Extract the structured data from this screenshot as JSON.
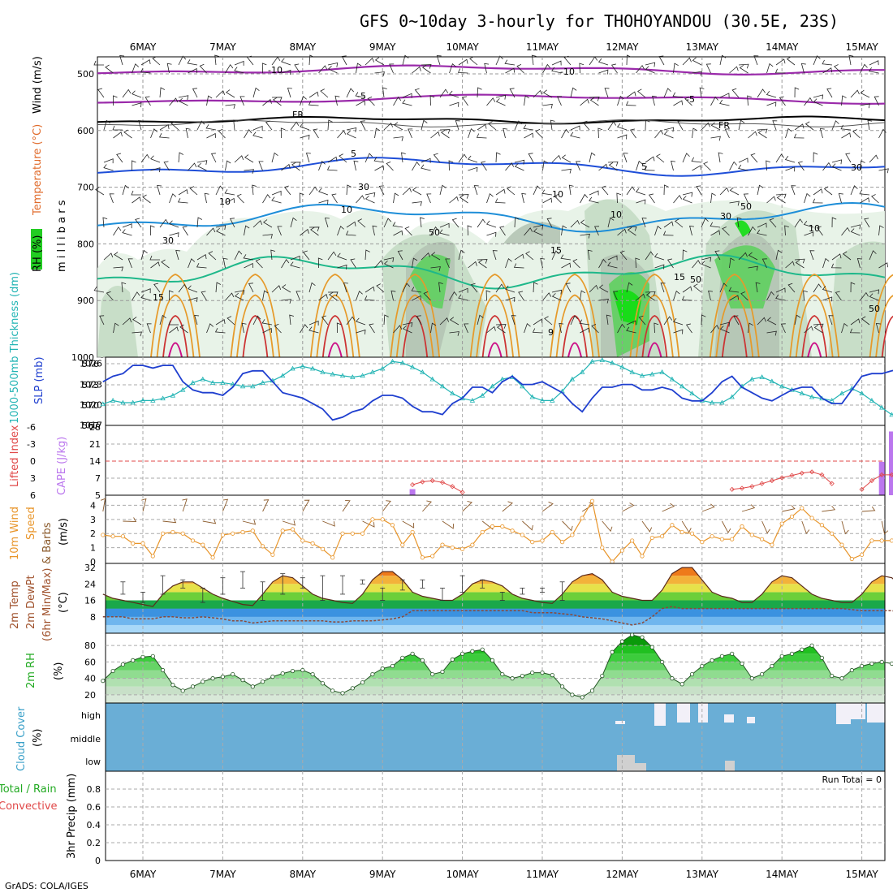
{
  "title": "GFS 0~10day 3-hourly for THOHOYANDOU (30.5E, 23S)",
  "credit": "GrADS: COLA/IGES",
  "dates": [
    "6MAY",
    "7MAY",
    "8MAY",
    "9MAY",
    "10MAY",
    "11MAY",
    "12MAY",
    "13MAY",
    "14MAY",
    "15MAY"
  ],
  "colors": {
    "rh_light": "#e6f2e6",
    "rh_mid": "#c4dcc4",
    "rh_grey": "#b4c4b4",
    "rh_green": "#5fcf5f",
    "rh_bright": "#11dd11",
    "t_purple": "#9a2aaa",
    "t_fr": "#000000",
    "t_blue": "#1e4ed8",
    "t_lightblue": "#1e8ed8",
    "t_teal": "#1eb88a",
    "t_orange": "#e69a2a",
    "t_red": "#cc3333",
    "t_magenta": "#cc1188",
    "slp": "#1f3fcf",
    "thick": "#22b4b4",
    "li": "#e04848",
    "cape": "#bb77ee",
    "wspd": "#e8952a",
    "barb": "#8b5a2b",
    "cloud": "#6aaed6",
    "cloud_gap": "#f2f0f8",
    "precip_total": "#22aa22"
  },
  "panels": {
    "profile": {
      "y_label": "m i l l i b a r s",
      "legend": [
        "RH (%)",
        "Temperature (°C)",
        "Wind (m/s)"
      ],
      "yticks": [
        500,
        600,
        700,
        800,
        900,
        1000
      ],
      "contour_labels": [
        "-10",
        "-10",
        "-5",
        "-5",
        "FR",
        "FR",
        "5",
        "5",
        "10",
        "10",
        "10",
        "15",
        "15",
        "15",
        "9",
        "30",
        "30",
        "30",
        "30",
        "50",
        "50",
        "50",
        "50",
        "10",
        "10"
      ]
    },
    "slp": {
      "label_thick": "1000-500mb Thickness (dm)",
      "label_slp": "SLP (mb)",
      "left_ticks": [
        "576",
        "573",
        "570",
        "567"
      ],
      "right_ticks": [
        "1026",
        "1023",
        "1020",
        "1017"
      ]
    },
    "cape": {
      "label_li": "Lifted Index",
      "label_cape": "CAPE (J/kg)",
      "left_ticks": [
        "-6",
        "-3",
        "0",
        "3",
        "6"
      ],
      "right_ticks": [
        "28",
        "21",
        "14",
        "7",
        "5"
      ]
    },
    "wind": {
      "label_a": "10m Wind",
      "label_b": "Speed",
      "label_c": "& Barbs",
      "unit": "(m/s)",
      "ticks": [
        "4",
        "3",
        "2",
        "1",
        "0"
      ]
    },
    "temp": {
      "label_a": "2m Temp",
      "label_b": "2m DewPt",
      "label_c": "(6hr Min/Max)",
      "unit": "(°C)",
      "ticks": [
        "32",
        "24",
        "16",
        "8"
      ]
    },
    "rh": {
      "label": "2m RH",
      "unit": "(%)",
      "ticks": [
        "80",
        "60",
        "40",
        "20"
      ]
    },
    "cloud": {
      "label": "Cloud Cover",
      "unit": "(%)",
      "levels": [
        "high",
        "middle",
        "low"
      ]
    },
    "precip": {
      "label": "3hr Precip (mm)",
      "legend_total": "Total / Rain",
      "legend_conv": "Convective",
      "ticks": [
        "0.8",
        "0.6",
        "0.4",
        "0.2",
        "0"
      ],
      "run_total": "Run Total = 0"
    }
  },
  "chart_data": [
    {
      "type": "line",
      "title": "SLP (mb) / 1000-500mb Thickness (dm)",
      "x_start": "5MAY 12Z",
      "x_step_hours": 3,
      "series": [
        {
          "name": "SLP (mb)",
          "axis": "right",
          "ylim": [
            1015,
            1027.5
          ],
          "values": [
            1023,
            1024,
            1024.5,
            1026,
            1026,
            1025.5,
            1026,
            1026,
            1023,
            1021.5,
            1021,
            1021,
            1020.5,
            1022,
            1024.5,
            1025,
            1025,
            1023,
            1021,
            1020.5,
            1020,
            1019,
            1018,
            1016,
            1016.5,
            1017.5,
            1018,
            1019.5,
            1020.5,
            1020.5,
            1020,
            1018.5,
            1017.5,
            1017.5,
            1017,
            1019,
            1020,
            1022,
            1022,
            1021,
            1023,
            1024,
            1022.5,
            1022.5,
            1023,
            1022,
            1021,
            1019,
            1017.5,
            1020,
            1022,
            1022,
            1022.5,
            1022.5,
            1021.5,
            1021.5,
            1022,
            1021.5,
            1020,
            1019.5,
            1019.5,
            1021,
            1023,
            1024,
            1022,
            1021,
            1020,
            1019.5,
            1020.5,
            1021.5,
            1022,
            1022,
            1020,
            1019,
            1019,
            1021.5,
            1024,
            1024.5,
            1024.5,
            1025,
            1025.5,
            1026,
            1025,
            1021.5,
            1020,
            1020,
            1020.5,
            1021,
            1021.5
          ]
        },
        {
          "name": "1000-500mb Thickness (dm)",
          "axis": "left",
          "ylim": [
            567,
            576.6
          ],
          "values": [
            570,
            570.5,
            570.2,
            570.2,
            570.5,
            570.5,
            570.8,
            571.2,
            572,
            573,
            573.5,
            573,
            573,
            572.8,
            572.5,
            572.5,
            573,
            573.3,
            574,
            575,
            575.3,
            575,
            574.5,
            574.2,
            574,
            573.8,
            574,
            574.5,
            575,
            576,
            575.8,
            575.2,
            574.5,
            573.5,
            572.5,
            571.5,
            570.8,
            570.5,
            571.2,
            572.5,
            573.5,
            573.8,
            572.5,
            571,
            570.5,
            570.5,
            571.8,
            573.5,
            574.5,
            576,
            576.2,
            575.8,
            575.2,
            574.5,
            574,
            574.2,
            574.5,
            573.5,
            572.5,
            571.5,
            570.5,
            570.2,
            570.2,
            571,
            572.5,
            573.5,
            573.8,
            573.2,
            572.5,
            572,
            571.5,
            571,
            570.8,
            570.5,
            571.5,
            572.2,
            571.5,
            570.5,
            569.5,
            568.5,
            568.5,
            569.5,
            570.5,
            572,
            572.5,
            571.5,
            571,
            570.5,
            570.8,
            570.5,
            570.3,
            570.5
          ]
        }
      ]
    },
    {
      "type": "bar",
      "title": "Lifted Index / CAPE (J/kg)",
      "x_start": "5MAY 12Z",
      "x_step_hours": 3,
      "series": [
        {
          "name": "CAPE (J/kg)",
          "axis": "right",
          "ylim": [
            5,
            28
          ],
          "points": [
            {
              "i": 31,
              "v": 7
            },
            {
              "i": 78,
              "v": 16
            },
            {
              "i": 79,
              "v": 26
            },
            {
              "i": 80,
              "v": 9
            },
            {
              "i": 81,
              "v": 7
            }
          ]
        },
        {
          "name": "Lifted Index",
          "axis": "left",
          "ylim": [
            6,
            -6
          ],
          "segments": [
            [
              {
                "i": 31,
                "v": 4.2
              },
              {
                "i": 32,
                "v": 3.7
              },
              {
                "i": 33,
                "v": 3.5
              },
              {
                "i": 34,
                "v": 3.8
              },
              {
                "i": 35,
                "v": 4.5
              },
              {
                "i": 36,
                "v": 5.5
              }
            ],
            [
              {
                "i": 63,
                "v": 5
              },
              {
                "i": 64,
                "v": 4.8
              },
              {
                "i": 65,
                "v": 4.5
              },
              {
                "i": 66,
                "v": 4
              },
              {
                "i": 67,
                "v": 3.5
              },
              {
                "i": 68,
                "v": 3
              },
              {
                "i": 69,
                "v": 2.6
              },
              {
                "i": 70,
                "v": 2.2
              },
              {
                "i": 71,
                "v": 2
              },
              {
                "i": 72,
                "v": 2.5
              },
              {
                "i": 73,
                "v": 4
              }
            ],
            [
              {
                "i": 76,
                "v": 5
              },
              {
                "i": 77,
                "v": 3.5
              },
              {
                "i": 78,
                "v": 2.5
              },
              {
                "i": 79,
                "v": 2.5
              },
              {
                "i": 80,
                "v": 3
              },
              {
                "i": 81,
                "v": 4.5
              },
              {
                "i": 82,
                "v": 6
              }
            ]
          ]
        }
      ]
    },
    {
      "type": "line",
      "title": "10m Wind Speed (m/s)",
      "ylim": [
        0,
        4.6
      ],
      "x_start": "5MAY 12Z",
      "x_step_hours": 3,
      "values": [
        1.9,
        1.8,
        1.8,
        1.3,
        1.3,
        0.4,
        2,
        2.1,
        2,
        1.5,
        1.2,
        0.3,
        1.9,
        2,
        2.1,
        2.2,
        1.1,
        0.5,
        2.2,
        2.3,
        1.5,
        1.3,
        0.9,
        0.3,
        2,
        2,
        2,
        3,
        3,
        2.6,
        1.2,
        2.1,
        0.3,
        0.4,
        1.2,
        1,
        0.9,
        1.2,
        2.1,
        2.5,
        2.5,
        2.2,
        1.9,
        1.4,
        1.5,
        2.1,
        1.4,
        1.9,
        3.1,
        4.3,
        1,
        0,
        0.8,
        1.5,
        0.4,
        1.7,
        1.8,
        2.6,
        2.1,
        2,
        1.4,
        1.8,
        1.6,
        1.6,
        2.5,
        1.9,
        1.6,
        1.2,
        2.7,
        3.2,
        3.8,
        3.1,
        2.6,
        2,
        1.2,
        0.2,
        0.5,
        1.5,
        1.5,
        1.5,
        1.4,
        1.4,
        1.3,
        1.5,
        1.9,
        1.9,
        1.7,
        1.5,
        1.4,
        1.5,
        1
      ]
    },
    {
      "type": "area",
      "title": "2m Temp / 2m DewPt (°C)",
      "ylim": [
        0,
        34
      ],
      "x_start": "5MAY 12Z",
      "x_step_hours": 3,
      "series": [
        {
          "name": "2m Temp",
          "values": [
            19,
            17,
            16,
            15,
            14,
            13,
            19,
            23,
            25,
            25,
            22,
            19,
            17,
            15.5,
            14,
            13.5,
            19,
            25,
            28,
            27,
            23,
            19,
            17,
            16,
            15,
            14.5,
            19,
            26,
            30,
            30,
            26,
            20,
            18,
            17,
            16,
            16,
            19,
            24,
            26,
            25,
            23,
            19,
            17,
            16,
            15,
            14.5,
            19,
            25,
            28,
            29,
            26,
            20,
            18,
            17,
            16,
            16,
            21,
            29,
            32,
            32,
            26,
            20,
            18,
            17,
            15,
            15,
            19,
            25,
            28,
            27,
            23,
            19,
            17,
            16,
            15,
            15,
            19,
            25,
            28,
            27,
            23,
            19,
            17,
            16,
            15,
            14.5,
            19,
            25,
            28,
            27,
            23,
            19,
            17,
            16,
            16
          ]
        },
        {
          "name": "2m DewPt",
          "values": [
            8,
            8,
            8,
            7,
            7,
            7,
            8,
            8,
            7.5,
            7.5,
            8,
            7.5,
            7,
            6,
            6,
            5,
            5.5,
            6,
            6,
            6,
            6,
            6,
            6,
            5.5,
            5.5,
            6,
            6,
            6,
            6.5,
            7,
            8,
            11,
            11,
            11,
            11,
            11,
            11,
            11,
            11,
            11,
            11,
            11,
            11,
            10,
            10,
            10,
            9.5,
            9,
            8,
            7.5,
            7,
            6,
            5,
            4,
            5,
            8,
            12,
            13,
            12,
            12,
            12,
            12,
            12,
            12,
            12,
            12,
            12,
            12,
            12,
            12,
            12,
            12,
            12,
            12,
            12,
            11.5,
            11,
            11,
            11,
            11,
            10,
            10,
            10,
            10,
            10,
            10,
            10,
            10,
            10,
            10,
            10,
            10,
            10
          ]
        },
        {
          "name": "6hr Max",
          "values": [
            25,
            25,
            20,
            20,
            28,
            28,
            26,
            26,
            22,
            22,
            27,
            27,
            30,
            30,
            25,
            25,
            29,
            29,
            27,
            27,
            28,
            28,
            28,
            28,
            26,
            26,
            22,
            22,
            26,
            26,
            26,
            26,
            22,
            22,
            28,
            28,
            26,
            26,
            20,
            20,
            22,
            22,
            20,
            20,
            25,
            25
          ]
        },
        {
          "name": "6hr Min",
          "values": [
            19,
            19,
            15,
            15,
            19,
            19,
            22,
            22,
            15,
            15,
            19,
            19,
            22,
            22,
            16,
            16,
            19,
            19,
            22,
            22,
            16,
            16,
            19,
            19,
            24,
            24,
            16,
            16,
            21,
            21,
            22,
            22,
            16,
            16,
            20,
            20,
            22,
            22,
            16,
            16,
            19,
            19,
            22,
            22,
            16,
            16
          ]
        }
      ]
    },
    {
      "type": "area",
      "title": "2m RH (%)",
      "ylim": [
        10,
        95
      ],
      "x_start": "5MAY 12Z",
      "x_step_hours": 3,
      "values": [
        37,
        49,
        57,
        62,
        66,
        67,
        50,
        32,
        25,
        30,
        36,
        40,
        42,
        45,
        38,
        30,
        36,
        42,
        46,
        49,
        50,
        45,
        34,
        25,
        22,
        28,
        35,
        45,
        52,
        55,
        65,
        70,
        62,
        45,
        48,
        63,
        70,
        73,
        75,
        62,
        45,
        40,
        43,
        47,
        47,
        44,
        30,
        20,
        17,
        25,
        43,
        72,
        85,
        93,
        90,
        78,
        60,
        40,
        33,
        45,
        55,
        62,
        67,
        70,
        58,
        40,
        45,
        55,
        67,
        70,
        75,
        80,
        65,
        43,
        40,
        50,
        55,
        58,
        60,
        58,
        55,
        40,
        44
      ]
    },
    {
      "type": "heatmap",
      "title": "Cloud Cover (%)",
      "levels": [
        "high",
        "middle",
        "low"
      ],
      "note": "Cloud deck near 100% throughout; gaps in high cloud around 12MAY–13MAY and 15MAY, gaps in low cloud near 12MAY and 13MAY"
    },
    {
      "type": "bar",
      "title": "3hr Precip (mm)",
      "ylim": [
        0,
        1
      ],
      "run_total": 0,
      "series": [
        {
          "name": "Total / Rain",
          "values": []
        },
        {
          "name": "Convective",
          "values": []
        }
      ]
    }
  ]
}
